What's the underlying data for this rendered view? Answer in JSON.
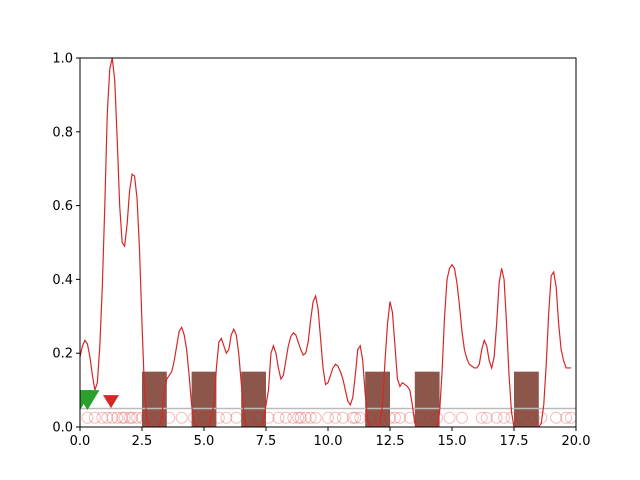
{
  "chart_data": {
    "type": "line",
    "title": "",
    "xlabel": "",
    "ylabel": "",
    "xlim": [
      0,
      20
    ],
    "ylim": [
      0,
      1
    ],
    "grid": false,
    "x_ticks": [
      0,
      2.5,
      5,
      7.5,
      10,
      12.5,
      15,
      17.5,
      20
    ],
    "x_tick_labels": [
      "0.0",
      "2.5",
      "5.0",
      "7.5",
      "10.0",
      "12.5",
      "15.0",
      "17.5",
      "20.0"
    ],
    "y_ticks": [
      0,
      0.2,
      0.4,
      0.6,
      0.8,
      1.0
    ],
    "y_tick_labels": [
      "0.0",
      "0.2",
      "0.4",
      "0.6",
      "0.8",
      "1.0"
    ],
    "colors": {
      "line": "#d62728",
      "blocks": "#8c564b",
      "green_marker": "#2ca02c",
      "red_marker": "#d62728",
      "circles": "#d62728",
      "baseline": "#bbbbbb"
    },
    "series": [
      {
        "kind": "line",
        "points": [
          [
            0.0,
            0.19
          ],
          [
            0.1,
            0.22
          ],
          [
            0.2,
            0.235
          ],
          [
            0.3,
            0.225
          ],
          [
            0.4,
            0.19
          ],
          [
            0.5,
            0.14
          ],
          [
            0.6,
            0.1
          ],
          [
            0.7,
            0.12
          ],
          [
            0.8,
            0.22
          ],
          [
            0.9,
            0.38
          ],
          [
            1.0,
            0.6
          ],
          [
            1.1,
            0.85
          ],
          [
            1.2,
            0.97
          ],
          [
            1.3,
            1.0
          ],
          [
            1.4,
            0.94
          ],
          [
            1.5,
            0.78
          ],
          [
            1.6,
            0.6
          ],
          [
            1.7,
            0.5
          ],
          [
            1.8,
            0.49
          ],
          [
            1.9,
            0.55
          ],
          [
            2.0,
            0.64
          ],
          [
            2.1,
            0.685
          ],
          [
            2.2,
            0.68
          ],
          [
            2.3,
            0.62
          ],
          [
            2.4,
            0.48
          ],
          [
            2.5,
            0.28
          ],
          [
            2.6,
            0.1
          ],
          [
            2.7,
            0.02
          ],
          [
            2.8,
            0.0
          ],
          [
            3.0,
            0.0
          ],
          [
            3.2,
            0.0
          ],
          [
            3.3,
            0.03
          ],
          [
            3.4,
            0.1
          ],
          [
            3.5,
            0.13
          ],
          [
            3.6,
            0.14
          ],
          [
            3.7,
            0.15
          ],
          [
            3.8,
            0.18
          ],
          [
            3.9,
            0.22
          ],
          [
            4.0,
            0.26
          ],
          [
            4.1,
            0.27
          ],
          [
            4.2,
            0.25
          ],
          [
            4.3,
            0.21
          ],
          [
            4.4,
            0.14
          ],
          [
            4.5,
            0.06
          ],
          [
            4.6,
            0.01
          ],
          [
            4.8,
            0.0
          ],
          [
            5.2,
            0.0
          ],
          [
            5.4,
            0.06
          ],
          [
            5.5,
            0.16
          ],
          [
            5.6,
            0.23
          ],
          [
            5.7,
            0.24
          ],
          [
            5.8,
            0.22
          ],
          [
            5.9,
            0.2
          ],
          [
            6.0,
            0.21
          ],
          [
            6.1,
            0.25
          ],
          [
            6.2,
            0.265
          ],
          [
            6.3,
            0.25
          ],
          [
            6.4,
            0.2
          ],
          [
            6.5,
            0.12
          ],
          [
            6.6,
            0.04
          ],
          [
            6.7,
            0.0
          ],
          [
            7.0,
            0.0
          ],
          [
            7.3,
            0.0
          ],
          [
            7.4,
            0.02
          ],
          [
            7.6,
            0.1
          ],
          [
            7.7,
            0.2
          ],
          [
            7.8,
            0.22
          ],
          [
            7.9,
            0.2
          ],
          [
            8.0,
            0.16
          ],
          [
            8.1,
            0.13
          ],
          [
            8.2,
            0.14
          ],
          [
            8.3,
            0.18
          ],
          [
            8.4,
            0.22
          ],
          [
            8.5,
            0.245
          ],
          [
            8.6,
            0.255
          ],
          [
            8.7,
            0.25
          ],
          [
            8.8,
            0.23
          ],
          [
            8.9,
            0.21
          ],
          [
            9.0,
            0.195
          ],
          [
            9.1,
            0.2
          ],
          [
            9.2,
            0.23
          ],
          [
            9.3,
            0.29
          ],
          [
            9.4,
            0.34
          ],
          [
            9.5,
            0.355
          ],
          [
            9.6,
            0.32
          ],
          [
            9.7,
            0.24
          ],
          [
            9.8,
            0.16
          ],
          [
            9.9,
            0.115
          ],
          [
            10.0,
            0.12
          ],
          [
            10.1,
            0.14
          ],
          [
            10.2,
            0.16
          ],
          [
            10.3,
            0.17
          ],
          [
            10.4,
            0.165
          ],
          [
            10.5,
            0.15
          ],
          [
            10.6,
            0.13
          ],
          [
            10.7,
            0.1
          ],
          [
            10.8,
            0.07
          ],
          [
            10.9,
            0.06
          ],
          [
            11.0,
            0.08
          ],
          [
            11.1,
            0.14
          ],
          [
            11.2,
            0.21
          ],
          [
            11.3,
            0.22
          ],
          [
            11.4,
            0.18
          ],
          [
            11.5,
            0.09
          ],
          [
            11.6,
            0.02
          ],
          [
            11.7,
            0.0
          ],
          [
            12.0,
            0.0
          ],
          [
            12.1,
            0.01
          ],
          [
            12.2,
            0.06
          ],
          [
            12.3,
            0.18
          ],
          [
            12.4,
            0.28
          ],
          [
            12.5,
            0.34
          ],
          [
            12.6,
            0.31
          ],
          [
            12.7,
            0.22
          ],
          [
            12.8,
            0.13
          ],
          [
            12.9,
            0.11
          ],
          [
            13.0,
            0.12
          ],
          [
            13.1,
            0.115
          ],
          [
            13.2,
            0.11
          ],
          [
            13.3,
            0.1
          ],
          [
            13.4,
            0.06
          ],
          [
            13.5,
            0.01
          ],
          [
            13.6,
            0.0
          ],
          [
            14.0,
            0.0
          ],
          [
            14.4,
            0.0
          ],
          [
            14.5,
            0.04
          ],
          [
            14.6,
            0.15
          ],
          [
            14.7,
            0.3
          ],
          [
            14.8,
            0.4
          ],
          [
            14.9,
            0.43
          ],
          [
            15.0,
            0.44
          ],
          [
            15.1,
            0.43
          ],
          [
            15.2,
            0.39
          ],
          [
            15.3,
            0.33
          ],
          [
            15.4,
            0.26
          ],
          [
            15.5,
            0.21
          ],
          [
            15.6,
            0.185
          ],
          [
            15.7,
            0.17
          ],
          [
            15.8,
            0.165
          ],
          [
            15.9,
            0.16
          ],
          [
            16.0,
            0.16
          ],
          [
            16.1,
            0.17
          ],
          [
            16.2,
            0.21
          ],
          [
            16.3,
            0.235
          ],
          [
            16.4,
            0.22
          ],
          [
            16.5,
            0.18
          ],
          [
            16.6,
            0.16
          ],
          [
            16.7,
            0.19
          ],
          [
            16.8,
            0.28
          ],
          [
            16.9,
            0.39
          ],
          [
            17.0,
            0.43
          ],
          [
            17.1,
            0.4
          ],
          [
            17.2,
            0.28
          ],
          [
            17.3,
            0.14
          ],
          [
            17.4,
            0.04
          ],
          [
            17.5,
            0.0
          ],
          [
            18.0,
            0.0
          ],
          [
            18.5,
            0.0
          ],
          [
            18.6,
            0.01
          ],
          [
            18.7,
            0.06
          ],
          [
            18.8,
            0.17
          ],
          [
            18.9,
            0.31
          ],
          [
            19.0,
            0.41
          ],
          [
            19.1,
            0.42
          ],
          [
            19.2,
            0.38
          ],
          [
            19.3,
            0.28
          ],
          [
            19.4,
            0.21
          ],
          [
            19.5,
            0.18
          ],
          [
            19.6,
            0.16
          ],
          [
            19.7,
            0.16
          ],
          [
            19.8,
            0.16
          ]
        ]
      },
      {
        "kind": "blocks",
        "height": 0.15,
        "intervals": [
          [
            2.5,
            3.5
          ],
          [
            4.5,
            5.5
          ],
          [
            6.5,
            7.5
          ],
          [
            11.5,
            12.5
          ],
          [
            13.5,
            14.5
          ],
          [
            17.5,
            18.5
          ]
        ]
      },
      {
        "kind": "baseline",
        "y": 0.05
      },
      {
        "kind": "markers_green",
        "x": [
          0.0,
          0.3
        ],
        "y": 0.1
      },
      {
        "kind": "marker_red",
        "x": 1.25,
        "y": 0.07
      },
      {
        "kind": "circles",
        "y": 0.025,
        "x": [
          0.3,
          0.6,
          0.9,
          1.1,
          1.3,
          1.5,
          1.7,
          1.8,
          2.0,
          2.1,
          2.3,
          2.5,
          2.7,
          3.2,
          3.6,
          4.1,
          4.6,
          5.0,
          5.2,
          5.6,
          5.9,
          6.3,
          6.8,
          7.2,
          7.6,
          8.0,
          8.3,
          8.6,
          8.8,
          8.9,
          9.1,
          9.3,
          9.5,
          10.0,
          10.3,
          10.6,
          11.0,
          11.1,
          11.3,
          11.7,
          12.1,
          12.5,
          12.7,
          12.9,
          13.3,
          13.7,
          14.1,
          14.4,
          14.9,
          15.4,
          16.2,
          16.4,
          16.8,
          17.1,
          17.4,
          17.8,
          18.3,
          18.6,
          19.2,
          19.6,
          19.8
        ]
      }
    ]
  }
}
